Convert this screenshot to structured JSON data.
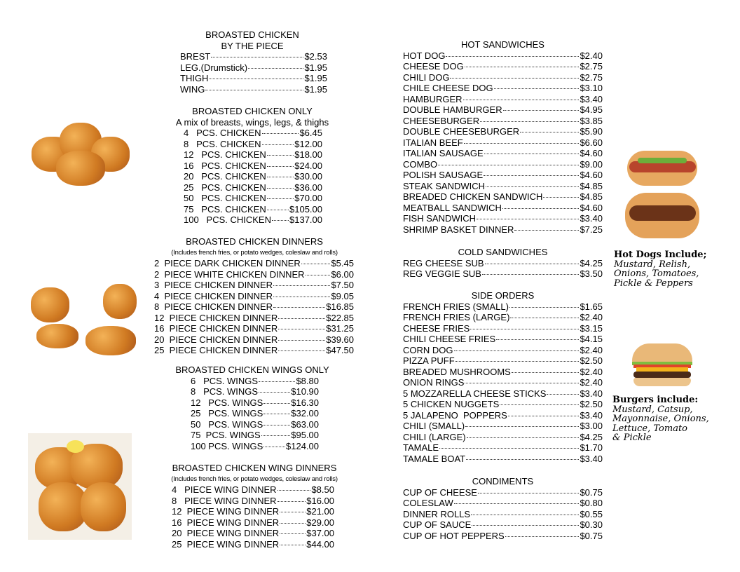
{
  "left": [
    {
      "title": [
        "BROASTED CHICKEN",
        "BY THE PIECE"
      ],
      "items": [
        {
          "name": "BREST",
          "price": "$2.53"
        },
        {
          "name": "LEG.(Drumstick)",
          "price": "$1.95"
        },
        {
          "name": "THIGH",
          "price": "$1.95"
        },
        {
          "name": "WING",
          "price": "$1.95"
        }
      ]
    },
    {
      "title": [
        "BROASTED CHICKEN ONLY"
      ],
      "note": "A mix of breasts, wings, legs, & thighs",
      "items": [
        {
          "name": "4   PCS. CHICKEN",
          "price": "$6.45"
        },
        {
          "name": "8   PCS. CHICKEN",
          "price": "$12.00"
        },
        {
          "name": "12   PCS. CHICKEN",
          "price": "$18.00"
        },
        {
          "name": "16   PCS. CHICKEN",
          "price": "$24.00"
        },
        {
          "name": "20   PCS. CHICKEN",
          "price": "$30.00"
        },
        {
          "name": "25   PCS. CHICKEN",
          "price": "$36.00"
        },
        {
          "name": "50   PCS. CHICKEN",
          "price": "$70.00"
        },
        {
          "name": "75   PCS. CHICKEN",
          "price": "$105.00"
        },
        {
          "name": "100   PCS. CHICKEN",
          "price": "$137.00"
        }
      ]
    },
    {
      "title": [
        "BROASTED CHICKEN DINNERS"
      ],
      "small_note": "(Includes french fries, or potato wedges, coleslaw and rolls)",
      "items": [
        {
          "name": "2  PIECE DARK CHICKEN DINNER",
          "price": "$5.45"
        },
        {
          "name": "2  PIECE WHITE CHICKEN DINNER",
          "price": "$6.00"
        },
        {
          "name": "3  PIECE CHICKEN DINNER",
          "price": "$7.50"
        },
        {
          "name": "4  PIECE CHICKEN DINNER",
          "price": "$9.05"
        },
        {
          "name": "8  PIECE CHICKEN DINNER",
          "price": "$16.85"
        },
        {
          "name": "12  PIECE CHICKEN DINNER",
          "price": "$22.85"
        },
        {
          "name": "16  PIECE CHICKEN DINNER",
          "price": "$31.25"
        },
        {
          "name": "20  PIECE CHICKEN DINNER",
          "price": "$39.60"
        },
        {
          "name": "25  PIECE CHICKEN DINNER",
          "price": "$47.50"
        }
      ]
    },
    {
      "title": [
        "BROASTED CHICKEN WINGS ONLY"
      ],
      "items": [
        {
          "name": "6   PCS. WINGS",
          "price": "$8.80"
        },
        {
          "name": "8   PCS. WINGS",
          "price": "$10.90"
        },
        {
          "name": "12   PCS. WINGS",
          "price": "$16.30"
        },
        {
          "name": "25   PCS. WINGS",
          "price": "$32.00"
        },
        {
          "name": "50   PCS. WINGS",
          "price": "$63.00"
        },
        {
          "name": "75  PCS. WINGS",
          "price": "$95.00"
        },
        {
          "name": "100 PCS. WINGS",
          "price": "$124.00"
        }
      ]
    },
    {
      "title": [
        "BROASTED CHICKEN WING DINNERS"
      ],
      "small_note": "(Includes french fries, or potato wedges, coleslaw and rolls)",
      "items": [
        {
          "name": "4   PIECE WING DINNER",
          "price": "$8.50"
        },
        {
          "name": "8   PIECE WING DINNER",
          "price": "$16.00"
        },
        {
          "name": "12  PIECE WING DINNER",
          "price": "$21.00"
        },
        {
          "name": "16  PIECE WING DINNER",
          "price": "$29.00"
        },
        {
          "name": "20  PIECE WING DINNER",
          "price": "$37.00"
        },
        {
          "name": "25  PIECE WING DINNER",
          "price": "$44.00"
        }
      ]
    }
  ],
  "right": [
    {
      "title": [
        "HOT SANDWICHES"
      ],
      "items": [
        {
          "name": "HOT DOG",
          "price": "$2.40"
        },
        {
          "name": "CHEESE DOG",
          "price": "$2.75"
        },
        {
          "name": "CHILI DOG",
          "price": "$2.75"
        },
        {
          "name": "CHILE CHEESE DOG",
          "price": "$3.10"
        },
        {
          "name": "HAMBURGER",
          "price": "$3.40"
        },
        {
          "name": "DOUBLE HAMBURGER",
          "price": "$4.95"
        },
        {
          "name": "CHEESEBURGER",
          "price": "$3.85"
        },
        {
          "name": "DOUBLE CHEESEBURGER",
          "price": "$5.90"
        },
        {
          "name": "ITALIAN BEEF",
          "price": "$6.60"
        },
        {
          "name": "ITALIAN SAUSAGE",
          "price": "$4.60"
        },
        {
          "name": "COMBO",
          "price": "$9.00"
        },
        {
          "name": "POLISH SAUSAGE",
          "price": "$4.60"
        },
        {
          "name": "STEAK SANDWICH",
          "price": "$4.85"
        },
        {
          "name": "BREADED CHICKEN SANDWICH",
          "price": "$4.85"
        },
        {
          "name": "MEATBALL SANDWICH",
          "price": "$4.60"
        },
        {
          "name": "FISH SANDWICH",
          "price": "$3.40"
        },
        {
          "name": "SHRIMP BASKET DINNER",
          "price": "$7.25"
        }
      ]
    },
    {
      "title": [
        "COLD SANDWICHES"
      ],
      "items": [
        {
          "name": "REG CHEESE SUB",
          "price": "$4.25"
        },
        {
          "name": "REG VEGGIE SUB",
          "price": "$3.50"
        }
      ]
    },
    {
      "title": [
        "SIDE ORDERS"
      ],
      "items": [
        {
          "name": "FRENCH FRIES (SMALL)",
          "price": "$1.65"
        },
        {
          "name": "FRENCH FRIES (LARGE)",
          "price": "$2.40"
        },
        {
          "name": "CHEESE FRIES",
          "price": "$3.15"
        },
        {
          "name": "CHILI CHEESE FRIES",
          "price": "$4.15"
        },
        {
          "name": "CORN DOG",
          "price": "$2.40"
        },
        {
          "name": "PIZZA PUFF",
          "price": "$2.50"
        },
        {
          "name": "BREADED MUSHROOMS",
          "price": "$2.40"
        },
        {
          "name": "ONION RINGS",
          "price": "$2.40"
        },
        {
          "name": "5 MOZZARELLA CHEESE STICKS",
          "price": "$3.40"
        },
        {
          "name": "5 CHICKEN NUGGETS",
          "price": "$2.50"
        },
        {
          "name": "5 JALAPENO  POPPERS",
          "price": "$3.40"
        },
        {
          "name": "CHILI (SMALL)",
          "price": "$3.00"
        },
        {
          "name": "CHILI (LARGE)",
          "price": "$4.25"
        },
        {
          "name": "TAMALE",
          "price": "$1.70"
        },
        {
          "name": "TAMALE BOAT",
          "price": "$3.40"
        }
      ]
    },
    {
      "title": [
        "CONDIMENTS"
      ],
      "items": [
        {
          "name": "CUP OF CHEESE",
          "price": "$0.75"
        },
        {
          "name": "COLESLAW",
          "price": "$0.80"
        },
        {
          "name": "DINNER ROLLS",
          "price": "$0.55"
        },
        {
          "name": "CUP OF SAUCE",
          "price": "$0.30"
        },
        {
          "name": "CUP OF HOT PEPPERS",
          "price": "$0.75"
        }
      ]
    }
  ],
  "captions": {
    "hotdogs": {
      "head": "Hot Dogs Include;",
      "lines": [
        "Mustard, Relish,",
        "Onions, Tomatoes,",
        "Pickle & Peppers"
      ]
    },
    "burgers": {
      "head": "Burgers include:",
      "lines": [
        "Mustard, Catsup,",
        "Mayonnaise, Onions,",
        "Lettuce, Tomato",
        "& Pickle"
      ]
    }
  }
}
